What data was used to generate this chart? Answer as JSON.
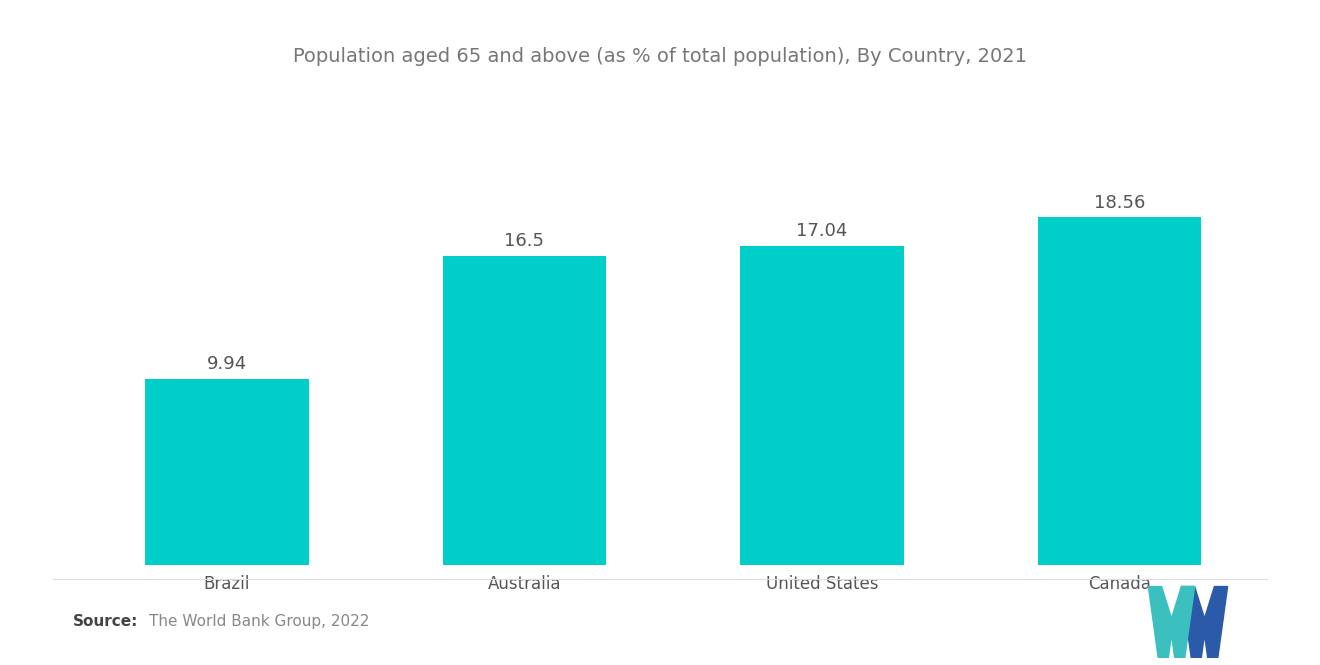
{
  "title": "Population aged 65 and above (as % of total population), By Country, 2021",
  "categories": [
    "Brazil",
    "Australia",
    "United States",
    "Canada"
  ],
  "values": [
    9.94,
    16.5,
    17.04,
    18.56
  ],
  "bar_color": "#00CEC9",
  "label_color": "#555555",
  "title_color": "#777777",
  "bg_color": "#ffffff",
  "source_bold": "Source:",
  "source_text": "The World Bank Group, 2022",
  "ylim": [
    0,
    22
  ],
  "bar_width": 0.55,
  "title_fontsize": 14,
  "label_fontsize": 13,
  "tick_fontsize": 12,
  "source_fontsize": 11,
  "logo_teal": "#3BBFBF",
  "logo_navy": "#2B5BA8"
}
